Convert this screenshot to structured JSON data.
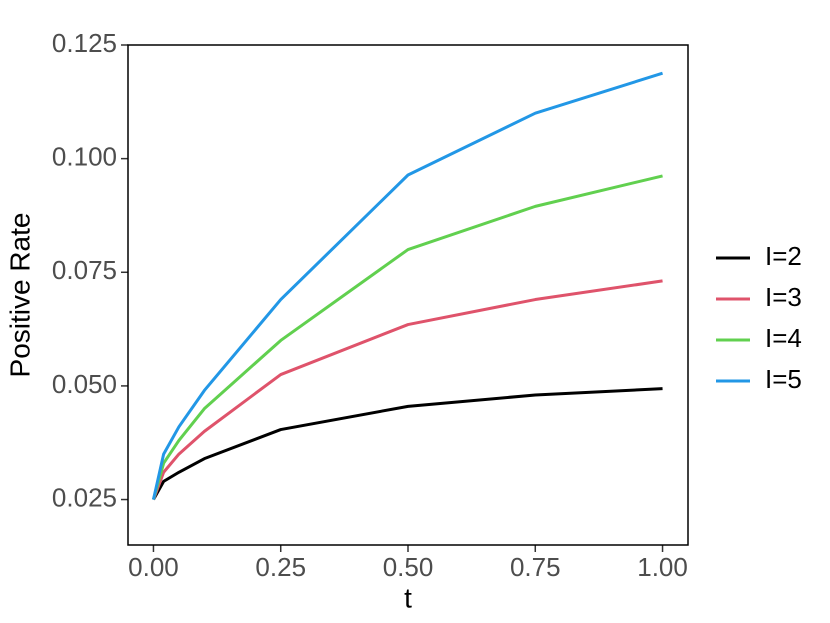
{
  "chart_data": {
    "type": "line",
    "x_label": "t",
    "y_label": "Positive Rate",
    "x": [
      0,
      0.02,
      0.05,
      0.1,
      0.25,
      0.5,
      0.75,
      1
    ],
    "series": [
      {
        "name": "I=2",
        "color": "#000000",
        "values": [
          0.025,
          0.029,
          0.031,
          0.034,
          0.0404,
          0.0455,
          0.048,
          0.0494
        ]
      },
      {
        "name": "I=3",
        "color": "#DF536B",
        "values": [
          0.025,
          0.031,
          0.035,
          0.04,
          0.0525,
          0.0635,
          0.069,
          0.0731
        ]
      },
      {
        "name": "I=4",
        "color": "#61D04F",
        "values": [
          0.025,
          0.033,
          0.038,
          0.045,
          0.06,
          0.08,
          0.0895,
          0.0962
        ]
      },
      {
        "name": "I=5",
        "color": "#2297E6",
        "values": [
          0.025,
          0.035,
          0.041,
          0.049,
          0.069,
          0.0964,
          0.11,
          0.1188
        ]
      }
    ],
    "xlim": [
      -0.05,
      1.05
    ],
    "xticks": [
      {
        "value": 0,
        "label": "0.00"
      },
      0.25,
      {
        "value": 0.5,
        "label": "0.50"
      },
      0.75,
      {
        "value": 1,
        "label": "1.00"
      }
    ],
    "ylim": [
      0.015,
      0.125
    ],
    "yticks": [
      0.025,
      {
        "value": 0.05,
        "label": "0.050"
      },
      0.075,
      {
        "value": 0.1,
        "label": "0.100"
      },
      0.125
    ],
    "grid": false,
    "legend": "right"
  }
}
